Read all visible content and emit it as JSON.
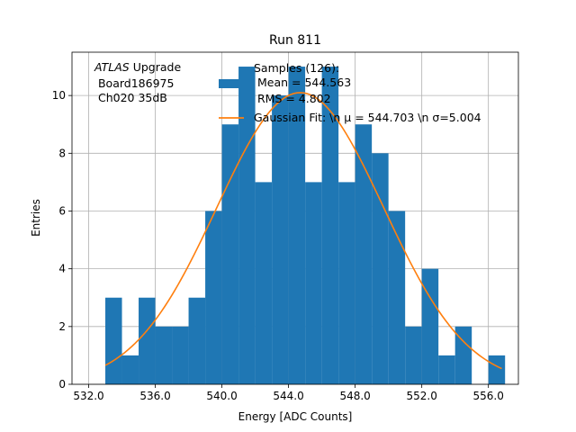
{
  "chart_data": {
    "type": "bar",
    "title": "Run 811",
    "xlabel": "Energy [ADC Counts]",
    "ylabel": "Entries",
    "xlim": [
      531,
      557.8
    ],
    "ylim": [
      0,
      11.5
    ],
    "grid": true,
    "xticks": [
      532,
      536,
      540,
      544,
      548,
      552,
      556
    ],
    "xtick_labels": [
      "532.0",
      "536.0",
      "540.0",
      "544.0",
      "548.0",
      "552.0",
      "556.0"
    ],
    "yticks": [
      0,
      2,
      4,
      6,
      8,
      10
    ],
    "ytick_labels": [
      "0",
      "2",
      "4",
      "6",
      "8",
      "10"
    ],
    "bin_edges": [
      533,
      534,
      535,
      536,
      537,
      538,
      539,
      540,
      541,
      542,
      543,
      544,
      545,
      546,
      547,
      548,
      549,
      550,
      551,
      552,
      553,
      554,
      555,
      556,
      557
    ],
    "counts": [
      3,
      1,
      3,
      2,
      2,
      3,
      6,
      9,
      11,
      7,
      10,
      11,
      7,
      11,
      7,
      9,
      8,
      6,
      2,
      4,
      1,
      2,
      0,
      1
    ],
    "bar_color": "#1f77b4",
    "fit_color": "#ff7f0e",
    "fit": {
      "amplitude": 10.1,
      "mu": 544.703,
      "sigma": 5.004,
      "x_range": [
        533,
        556.8
      ]
    },
    "annotation": {
      "italic": "ATLAS",
      "first_rest": " Upgrade",
      "line2": " Board186975",
      "line3": " Ch020 35dB"
    },
    "legend": {
      "position": "upper right",
      "samples": [
        "Samples (126):",
        " Mean = 544.563",
        " RMS = 4.802"
      ],
      "fit": "Gaussian Fit: \\n μ = 544.703 \\n σ=5.004"
    }
  }
}
